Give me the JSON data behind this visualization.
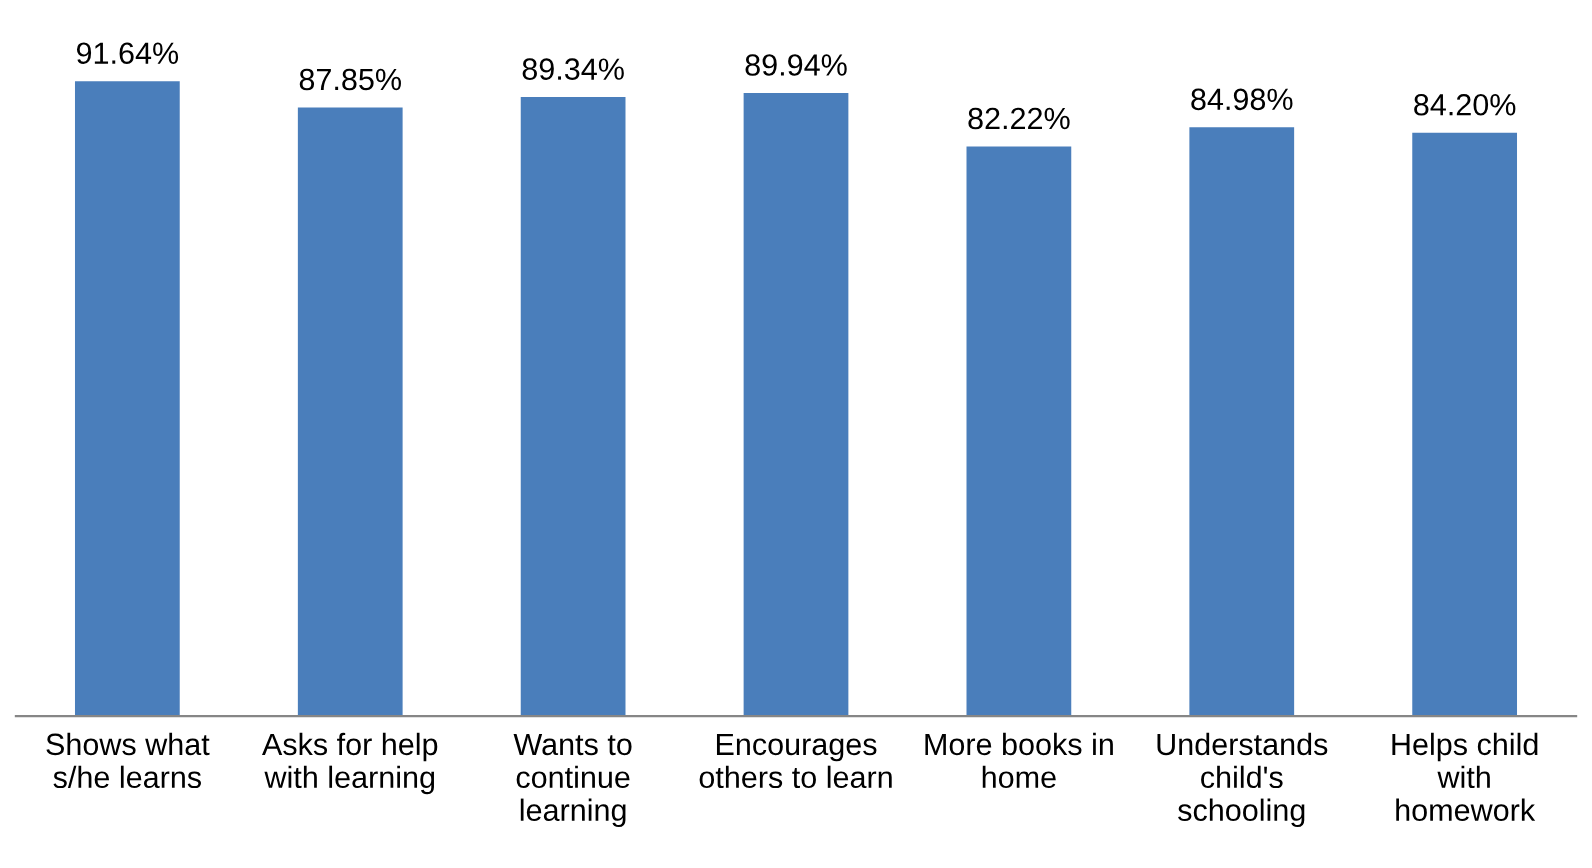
{
  "chart_data": {
    "type": "bar",
    "categories": [
      "Shows what\ns/he learns",
      "Asks for help\nwith learning",
      "Wants to\ncontinue\nlearning",
      "Encourages\nothers to learn",
      "More books in\nhome",
      "Understands\nchild's\nschooling",
      "Helps child\nwith\nhomework"
    ],
    "values": [
      91.64,
      87.85,
      89.34,
      89.94,
      82.22,
      84.98,
      84.2
    ],
    "value_labels": [
      "91.64%",
      "87.85%",
      "89.34%",
      "89.94%",
      "82.22%",
      "84.98%",
      "84.20%"
    ],
    "color": "#4a7ebb",
    "tick_labels": "x",
    "grid": false,
    "legend": false
  }
}
